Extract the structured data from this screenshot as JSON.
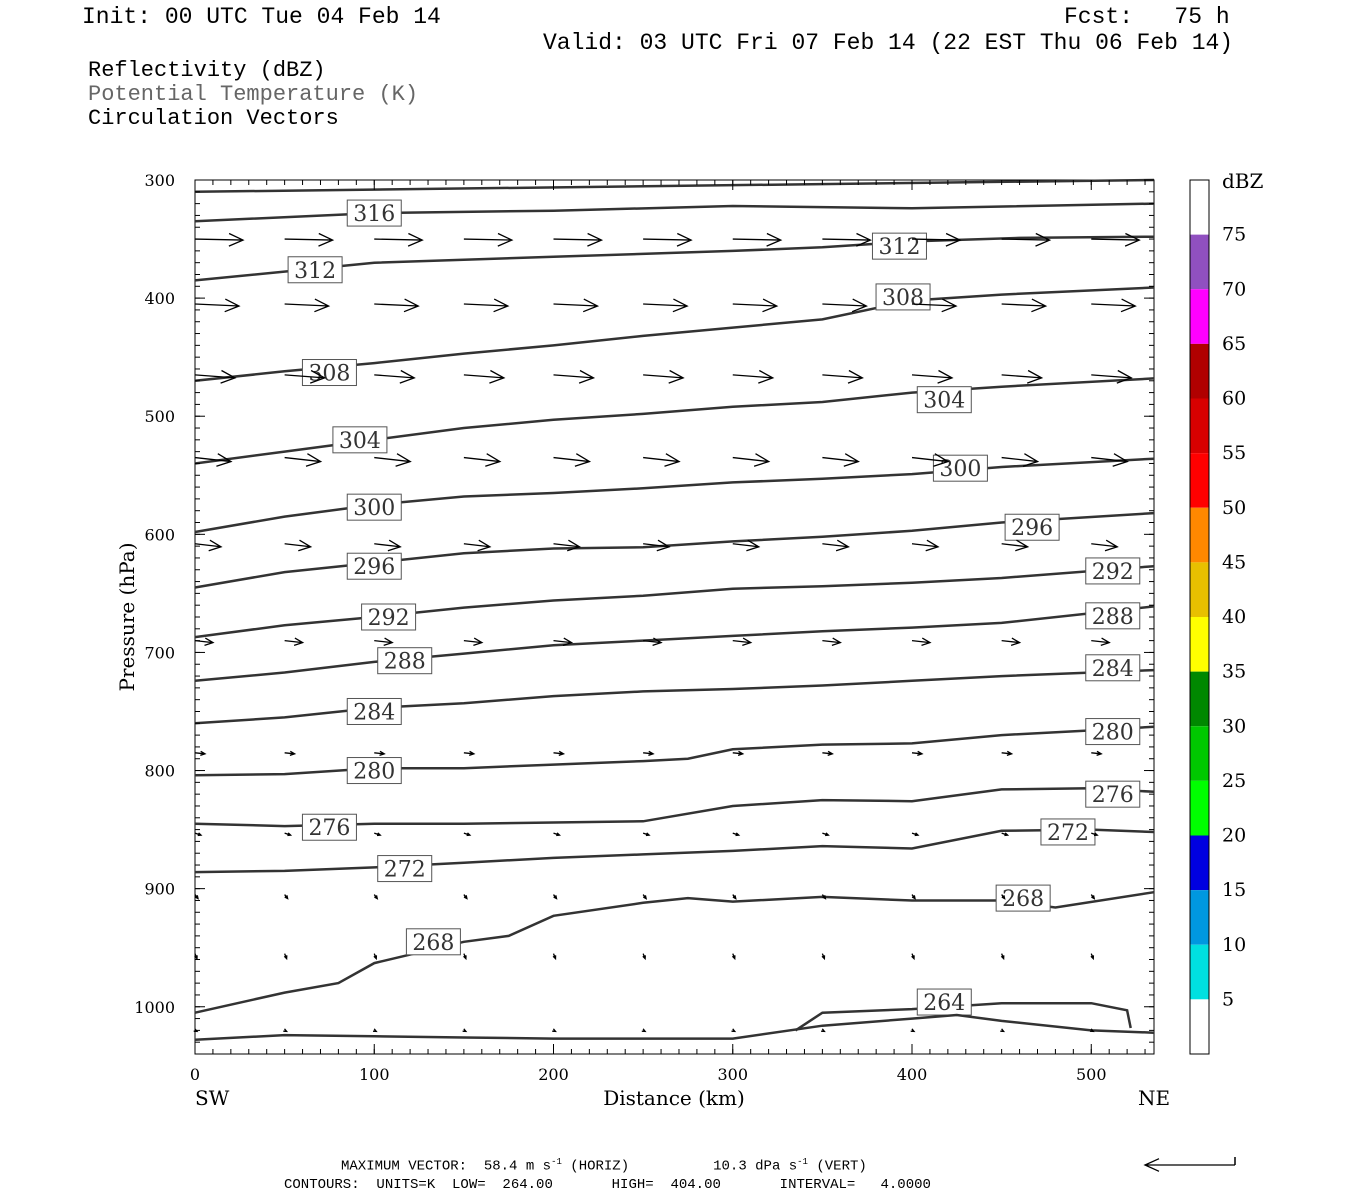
{
  "header": {
    "init": "Init: 00 UTC Tue 04 Feb 14",
    "fcst": "Fcst:   75 h",
    "valid": "Valid: 03 UTC Fri 07 Feb 14 (22 EST Thu 06 Feb 14)"
  },
  "legend": {
    "line1": "Reflectivity (dBZ)",
    "line2": "Potential Temperature (K)",
    "line3": "Circulation Vectors",
    "line2_color": "#666666"
  },
  "footer": {
    "max_vector_label": "MAXIMUM VECTOR:",
    "horiz_value": "58.4",
    "horiz_unit": "m s",
    "horiz_tag": "(HORIZ)",
    "vert_value": "10.3",
    "vert_unit": "dPa s",
    "vert_tag": "(VERT)",
    "exponent": "-1",
    "contours_line": "CONTOURS:  UNITS=K  LOW=  264.00       HIGH=  404.00       INTERVAL=   4.0000"
  },
  "chart_data": {
    "type": "contour",
    "xlabel": "Distance (km)",
    "ylabel": "Pressure (hPa)",
    "x_left_label": "SW",
    "x_right_label": "NE",
    "xlim": [
      0,
      535
    ],
    "ylim": [
      300,
      1040
    ],
    "x_ticks": [
      0,
      100,
      200,
      300,
      400,
      500
    ],
    "y_ticks": [
      300,
      400,
      500,
      600,
      700,
      800,
      900,
      1000
    ],
    "colorbar": {
      "unit": "dBZ",
      "labels": [
        "5",
        "10",
        "15",
        "20",
        "25",
        "30",
        "35",
        "40",
        "45",
        "50",
        "55",
        "60",
        "65",
        "70",
        "75"
      ],
      "colors": [
        "#ffffff",
        "#00e0e0",
        "#0098e0",
        "#0000e0",
        "#00ff00",
        "#00c800",
        "#008800",
        "#ffff00",
        "#e8c000",
        "#ff8800",
        "#ff0000",
        "#d80000",
        "#b00000",
        "#ff00ff",
        "#9050c0",
        "#ffffff"
      ]
    },
    "contours": [
      {
        "label": "316",
        "pts": [
          [
            0,
            310
          ],
          [
            535,
            300
          ]
        ],
        "labels_at": []
      },
      {
        "label": "316",
        "pts": [
          [
            0,
            335
          ],
          [
            100,
            328
          ],
          [
            200,
            326
          ],
          [
            300,
            322
          ],
          [
            400,
            324
          ],
          [
            535,
            320
          ]
        ],
        "labels_at": [
          [
            100,
            328
          ]
        ]
      },
      {
        "label": "312",
        "pts": [
          [
            0,
            385
          ],
          [
            100,
            370
          ],
          [
            200,
            365
          ],
          [
            300,
            360
          ],
          [
            350,
            357
          ],
          [
            400,
            352
          ],
          [
            460,
            349
          ],
          [
            535,
            348
          ]
        ],
        "labels_at": [
          [
            67,
            376
          ],
          [
            393,
            356
          ]
        ]
      },
      {
        "label": "308",
        "pts": [
          [
            0,
            470
          ],
          [
            50,
            462
          ],
          [
            100,
            455
          ],
          [
            150,
            447
          ],
          [
            200,
            440
          ],
          [
            250,
            432
          ],
          [
            300,
            425
          ],
          [
            350,
            418
          ],
          [
            400,
            402
          ],
          [
            450,
            397
          ],
          [
            535,
            391
          ]
        ],
        "labels_at": [
          [
            75,
            463
          ],
          [
            395,
            399
          ]
        ]
      },
      {
        "label": "304",
        "pts": [
          [
            0,
            540
          ],
          [
            50,
            530
          ],
          [
            100,
            520
          ],
          [
            150,
            510
          ],
          [
            200,
            503
          ],
          [
            250,
            498
          ],
          [
            300,
            492
          ],
          [
            350,
            488
          ],
          [
            400,
            480
          ],
          [
            450,
            475
          ],
          [
            535,
            468
          ]
        ],
        "labels_at": [
          [
            92,
            520
          ],
          [
            418,
            486
          ]
        ]
      },
      {
        "label": "300",
        "pts": [
          [
            0,
            598
          ],
          [
            50,
            585
          ],
          [
            100,
            575
          ],
          [
            150,
            568
          ],
          [
            200,
            565
          ],
          [
            250,
            561
          ],
          [
            300,
            556
          ],
          [
            350,
            553
          ],
          [
            400,
            549
          ],
          [
            450,
            543
          ],
          [
            535,
            536
          ]
        ],
        "labels_at": [
          [
            100,
            577
          ],
          [
            427,
            544
          ]
        ]
      },
      {
        "label": "296",
        "pts": [
          [
            0,
            645
          ],
          [
            50,
            632
          ],
          [
            100,
            624
          ],
          [
            150,
            616
          ],
          [
            200,
            612
          ],
          [
            250,
            611
          ],
          [
            300,
            606
          ],
          [
            350,
            602
          ],
          [
            400,
            597
          ],
          [
            450,
            590
          ],
          [
            535,
            582
          ]
        ],
        "labels_at": [
          [
            100,
            627
          ],
          [
            467,
            594
          ]
        ]
      },
      {
        "label": "292",
        "pts": [
          [
            0,
            687
          ],
          [
            50,
            677
          ],
          [
            100,
            670
          ],
          [
            150,
            662
          ],
          [
            200,
            656
          ],
          [
            250,
            652
          ],
          [
            300,
            646
          ],
          [
            350,
            644
          ],
          [
            400,
            641
          ],
          [
            450,
            637
          ],
          [
            535,
            627
          ]
        ],
        "labels_at": [
          [
            108,
            670
          ],
          [
            512,
            631
          ]
        ]
      },
      {
        "label": "288",
        "pts": [
          [
            0,
            724
          ],
          [
            50,
            717
          ],
          [
            100,
            708
          ],
          [
            150,
            701
          ],
          [
            200,
            694
          ],
          [
            250,
            690
          ],
          [
            300,
            686
          ],
          [
            350,
            682
          ],
          [
            400,
            679
          ],
          [
            450,
            675
          ],
          [
            535,
            661
          ]
        ],
        "labels_at": [
          [
            117,
            707
          ],
          [
            512,
            669
          ]
        ]
      },
      {
        "label": "284",
        "pts": [
          [
            0,
            760
          ],
          [
            50,
            755
          ],
          [
            100,
            747
          ],
          [
            150,
            743
          ],
          [
            200,
            737
          ],
          [
            250,
            733
          ],
          [
            300,
            731
          ],
          [
            350,
            728
          ],
          [
            400,
            724
          ],
          [
            450,
            720
          ],
          [
            535,
            715
          ]
        ],
        "labels_at": [
          [
            100,
            750
          ],
          [
            512,
            713
          ]
        ]
      },
      {
        "label": "280",
        "pts": [
          [
            0,
            804
          ],
          [
            50,
            803
          ],
          [
            100,
            798
          ],
          [
            150,
            798
          ],
          [
            200,
            795
          ],
          [
            250,
            792
          ],
          [
            275,
            790
          ],
          [
            300,
            782
          ],
          [
            350,
            778
          ],
          [
            400,
            777
          ],
          [
            450,
            770
          ],
          [
            500,
            766
          ],
          [
            535,
            763
          ]
        ],
        "labels_at": [
          [
            100,
            800
          ],
          [
            512,
            767
          ]
        ]
      },
      {
        "label": "276",
        "pts": [
          [
            0,
            845
          ],
          [
            50,
            847
          ],
          [
            100,
            845
          ],
          [
            150,
            845
          ],
          [
            200,
            844
          ],
          [
            250,
            843
          ],
          [
            300,
            830
          ],
          [
            350,
            825
          ],
          [
            400,
            826
          ],
          [
            450,
            816
          ],
          [
            500,
            815
          ],
          [
            535,
            818
          ]
        ],
        "labels_at": [
          [
            75,
            848
          ],
          [
            512,
            820
          ]
        ]
      },
      {
        "label": "272",
        "pts": [
          [
            0,
            886
          ],
          [
            50,
            885
          ],
          [
            100,
            882
          ],
          [
            150,
            878
          ],
          [
            200,
            874
          ],
          [
            250,
            871
          ],
          [
            300,
            868
          ],
          [
            350,
            864
          ],
          [
            400,
            866
          ],
          [
            450,
            851
          ],
          [
            500,
            850
          ],
          [
            535,
            852
          ]
        ],
        "labels_at": [
          [
            117,
            883
          ],
          [
            487,
            852
          ]
        ]
      },
      {
        "label": "268",
        "pts": [
          [
            0,
            1005
          ],
          [
            50,
            988
          ],
          [
            80,
            980
          ],
          [
            100,
            963
          ],
          [
            150,
            945
          ],
          [
            175,
            940
          ],
          [
            200,
            923
          ],
          [
            250,
            912
          ],
          [
            275,
            908
          ],
          [
            300,
            911
          ],
          [
            350,
            907
          ],
          [
            400,
            910
          ],
          [
            450,
            910
          ],
          [
            480,
            916
          ],
          [
            535,
            903
          ]
        ],
        "labels_at": [
          [
            133,
            945
          ],
          [
            462,
            908
          ]
        ]
      },
      {
        "label": "264",
        "pts": [
          [
            335,
            1020
          ],
          [
            350,
            1005
          ],
          [
            400,
            1002
          ],
          [
            450,
            997
          ],
          [
            500,
            997
          ],
          [
            520,
            1003
          ],
          [
            522,
            1018
          ]
        ],
        "labels_at": [
          [
            418,
            996
          ]
        ]
      },
      {
        "label": "264",
        "pts": [
          [
            0,
            1028
          ],
          [
            50,
            1024
          ],
          [
            100,
            1025
          ],
          [
            150,
            1026
          ],
          [
            200,
            1027
          ],
          [
            300,
            1027
          ],
          [
            350,
            1016
          ],
          [
            400,
            1010
          ],
          [
            425,
            1007
          ],
          [
            450,
            1012
          ],
          [
            500,
            1020
          ],
          [
            535,
            1022
          ]
        ],
        "labels_at": []
      }
    ],
    "vector_rows": [
      {
        "p": 350,
        "dx": 48,
        "dy": 1
      },
      {
        "p": 405,
        "dx": 44,
        "dy": 2
      },
      {
        "p": 465,
        "dx": 40,
        "dy": 3
      },
      {
        "p": 535,
        "dx": 36,
        "dy": 4
      },
      {
        "p": 608,
        "dx": 26,
        "dy": 3
      },
      {
        "p": 690,
        "dx": 18,
        "dy": 2
      },
      {
        "p": 785,
        "dx": 10,
        "dy": 1
      },
      {
        "p": 853,
        "dx": 6,
        "dy": 2
      },
      {
        "p": 905,
        "dx": 3,
        "dy": 4
      },
      {
        "p": 955,
        "dx": 2,
        "dy": 5
      },
      {
        "p": 1020,
        "dx": 2,
        "dy": 1
      }
    ],
    "vector_x": [
      0,
      50,
      100,
      150,
      200,
      250,
      300,
      350,
      400,
      450,
      500
    ],
    "reference_vector": {
      "dx": -90,
      "dy": 0
    }
  }
}
